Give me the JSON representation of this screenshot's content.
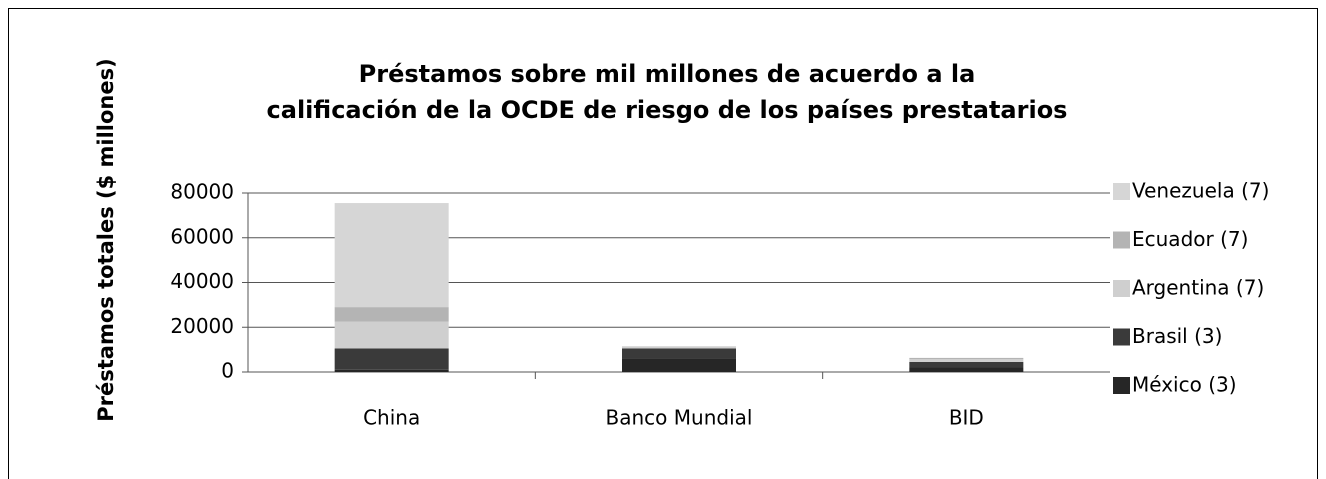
{
  "chart_data": {
    "type": "stacked_bar",
    "title": [
      "Préstamos sobre mil millones de acuerdo a la",
      "calificación de la OCDE de riesgo de los países prestatarios"
    ],
    "ylabel": "Préstamos totales ($ millones)",
    "categories": [
      "China",
      "Banco Mundial",
      "BID"
    ],
    "series": [
      {
        "name": "México (3)",
        "color": "#262626",
        "values": [
          1000,
          6000,
          2000
        ]
      },
      {
        "name": "Brasil (3)",
        "color": "#3a3a3a",
        "values": [
          9500,
          4500,
          2500
        ]
      },
      {
        "name": "Argentina (7)",
        "color": "#cfcfcf",
        "values": [
          12000,
          1000,
          1200
        ]
      },
      {
        "name": "Ecuador (7)",
        "color": "#b4b4b4",
        "values": [
          6500,
          0,
          600
        ]
      },
      {
        "name": "Venezuela (7)",
        "color": "#d6d6d6",
        "values": [
          46500,
          0,
          0
        ]
      }
    ],
    "ylim": [
      0,
      80000
    ],
    "yticks": [
      0,
      20000,
      40000,
      60000,
      80000
    ],
    "grid": true,
    "legend": "right"
  }
}
